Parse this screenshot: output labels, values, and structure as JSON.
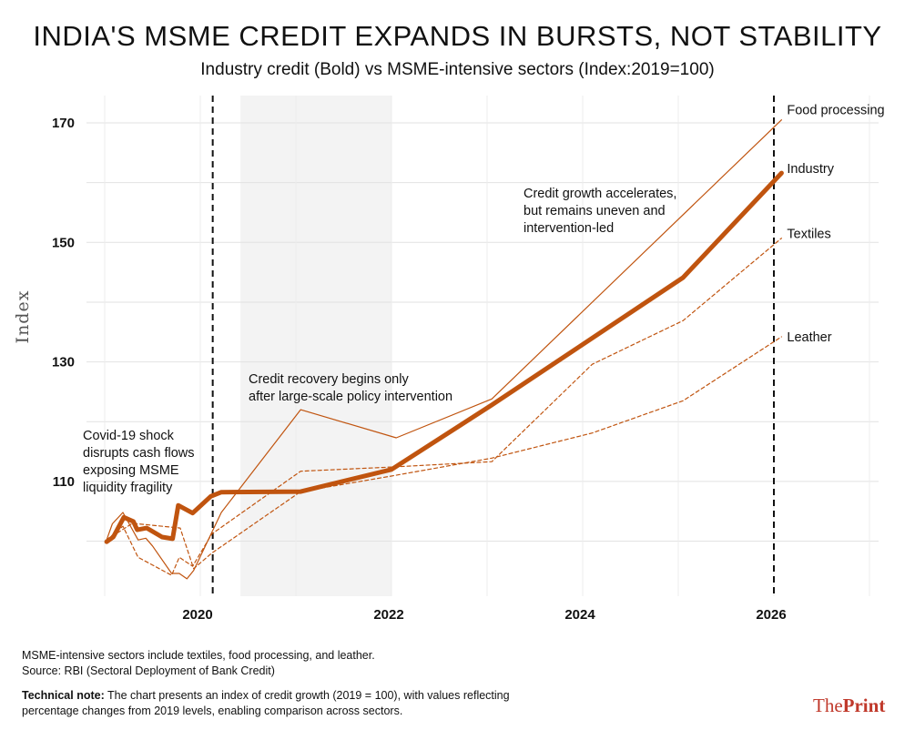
{
  "header": {
    "title": "INDIA'S MSME CREDIT EXPANDS IN BURSTS, NOT STABILITY",
    "subtitle": "Industry credit (Bold) vs MSME-intensive sectors (Index:2019=100)"
  },
  "chart_data": {
    "type": "line",
    "title": "INDIA'S MSME CREDIT EXPANDS IN BURSTS, NOT STABILITY",
    "subtitle": "Industry credit (Bold) vs MSME-intensive sectors (Index:2019=100)",
    "xlabel": "",
    "ylabel": "Index",
    "xlim": [
      2018.85,
      2027.0
    ],
    "ylim": [
      91,
      175
    ],
    "x_ticks": [
      "2020",
      "2022",
      "2024",
      "2026"
    ],
    "y_ticks": [
      "110",
      "130",
      "150",
      "170"
    ],
    "grid": true,
    "legend": "direct labels at line ends",
    "color": "#c0540f",
    "vertical_markers": [
      2020.13,
      2026.0
    ],
    "shaded_range": [
      2020.42,
      2022.0
    ],
    "series": [
      {
        "name": "Industry",
        "style": "bold",
        "x": [
          2019.02,
          2019.09,
          2019.2,
          2019.3,
          2019.34,
          2019.44,
          2019.6,
          2019.71,
          2019.77,
          2019.92,
          2020.11,
          2020.22,
          2021.05,
          2022.0,
          2023.05,
          2025.05,
          2026.08
        ],
        "y": [
          99.9,
          100.7,
          104.0,
          103.3,
          101.9,
          102.2,
          100.7,
          100.4,
          106.0,
          104.7,
          107.5,
          108.2,
          108.3,
          112.0,
          122.8,
          144.1,
          161.6
        ]
      },
      {
        "name": "Food processing",
        "style": "thin",
        "x": [
          2019.02,
          2019.08,
          2019.19,
          2019.35,
          2019.43,
          2019.5,
          2019.7,
          2019.78,
          2019.86,
          2019.93,
          2020.22,
          2021.05,
          2022.05,
          2023.05,
          2026.08
        ],
        "y": [
          100.2,
          102.9,
          104.8,
          100.2,
          100.5,
          99.2,
          94.6,
          94.6,
          93.7,
          95.1,
          104.8,
          122.0,
          117.3,
          123.8,
          170.5
        ]
      },
      {
        "name": "Textiles",
        "style": "dashed",
        "x": [
          2019.02,
          2019.19,
          2019.35,
          2019.7,
          2019.78,
          2019.92,
          2020.12,
          2021.05,
          2022.0,
          2023.05,
          2024.1,
          2025.05,
          2026.08
        ],
        "y": [
          100.2,
          102.5,
          97.3,
          94.3,
          97.3,
          95.8,
          101.2,
          111.7,
          112.4,
          113.3,
          129.6,
          136.9,
          150.7
        ]
      },
      {
        "name": "Leather",
        "style": "dashed",
        "x": [
          2019.02,
          2019.29,
          2019.79,
          2019.93,
          2020.12,
          2021.05,
          2022.0,
          2023.05,
          2024.1,
          2025.05,
          2026.08
        ],
        "y": [
          100.2,
          103.0,
          102.2,
          95.4,
          98.0,
          108.3,
          110.9,
          113.9,
          118.1,
          123.5,
          134.2
        ]
      }
    ],
    "annotations": [
      "Covid-19 shock disrupts cash flows exposing MSME liquidity fragility",
      "Credit recovery begins only after large-scale policy intervention",
      "Credit growth accelerates, but remains uneven and intervention-led"
    ]
  },
  "annotations": {
    "covid_lines": [
      "Covid-19 shock",
      "disrupts cash flows",
      "exposing MSME",
      "liquidity fragility"
    ],
    "recovery_lines": [
      "Credit recovery begins only",
      "after large-scale policy intervention"
    ],
    "growth_lines": [
      "Credit growth accelerates,",
      "but remains uneven and",
      "intervention-led"
    ]
  },
  "footer": {
    "note": "MSME-intensive sectors include textiles, food processing, and leather.",
    "source": "Source: RBI (Sectoral Deployment of Bank Credit)",
    "tech_label": "Technical note:",
    "tech_text_1": " The chart presents an index of credit growth (2019 = 100), with values reflecting",
    "tech_text_2": "percentage changes from 2019 levels, enabling comparison across sectors.",
    "logo_the": "The",
    "logo_print": "Print"
  }
}
